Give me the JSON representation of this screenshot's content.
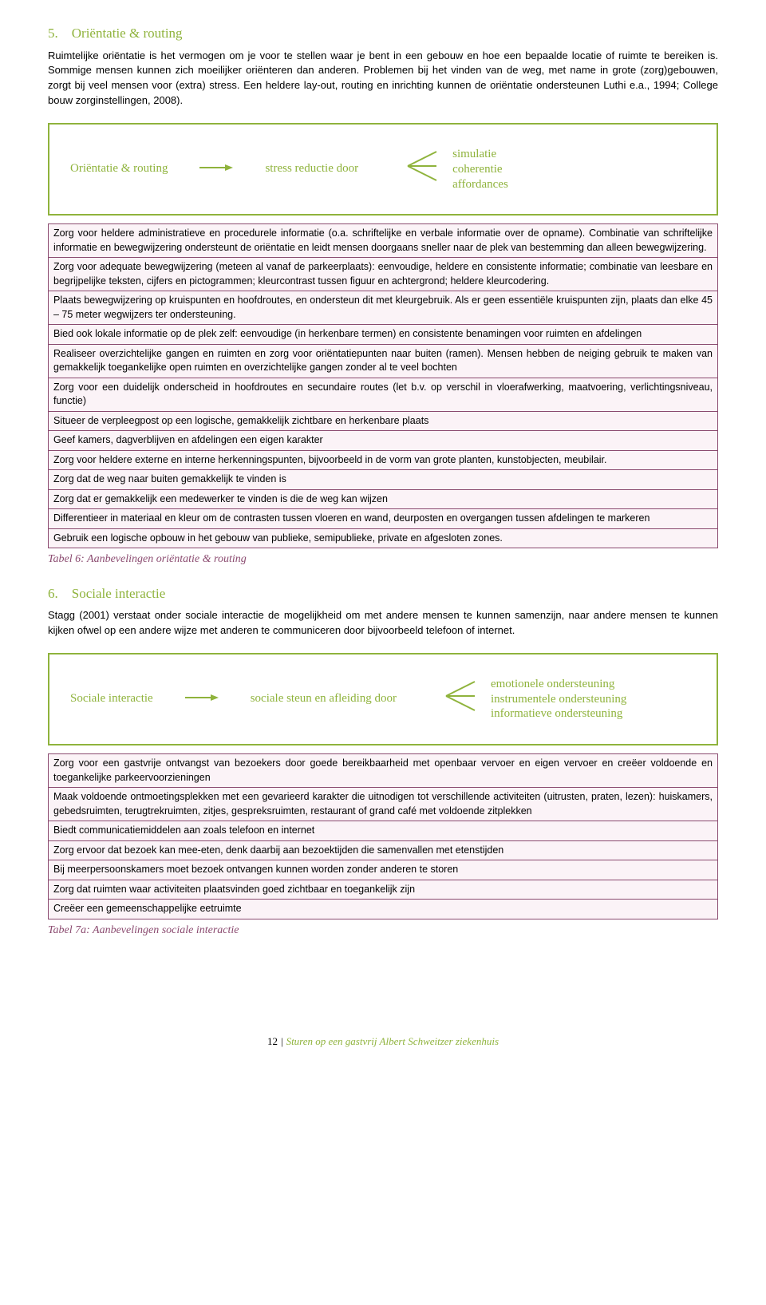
{
  "section5": {
    "heading": "5. Oriëntatie & routing",
    "body": "Ruimtelijke oriëntatie is het vermogen om je voor te stellen waar je bent in een gebouw en hoe een bepaalde locatie of ruimte te bereiken is. Sommige mensen kunnen zich moeilijker oriënteren dan anderen. Problemen bij het vinden van de weg, met name in grote (zorg)gebouwen, zorgt bij veel mensen voor (extra) stress. Een heldere lay-out, routing en inrichting kunnen de oriëntatie ondersteunen Luthi e.a., 1994; College bouw zorginstellingen, 2008)."
  },
  "diagram1": {
    "left": "Oriëntatie & routing",
    "mid": "stress reductie door",
    "right": [
      "simulatie",
      "coherentie",
      "affordances"
    ],
    "color": "#8fb33c"
  },
  "table6": {
    "border_color": "#8a4a6f",
    "row_bg": "#fbf3f7",
    "rows": [
      "Zorg voor heldere administratieve en procedurele informatie (o.a. schriftelijke en verbale informatie over de opname). Combinatie van schriftelijke informatie en bewegwijzering ondersteunt de oriëntatie en leidt mensen doorgaans sneller naar de plek van bestemming dan alleen bewegwijzering.",
      "Zorg voor adequate bewegwijzering (meteen al vanaf de parkeerplaats): eenvoudige, heldere en consistente informatie; combinatie van leesbare en begrijpelijke teksten, cijfers en pictogrammen; kleurcontrast tussen figuur en achtergrond; heldere kleurcodering.",
      "Plaats bewegwijzering op kruispunten en hoofdroutes, en ondersteun dit met kleurgebruik. Als er geen essentiële kruispunten zijn, plaats dan elke 45 – 75 meter wegwijzers ter ondersteuning.",
      "Bied ook lokale informatie op de plek zelf: eenvoudige (in herkenbare termen) en consistente benamingen voor ruimten en afdelingen",
      "Realiseer overzichtelijke gangen en ruimten en zorg voor oriëntatiepunten naar buiten (ramen). Mensen hebben de neiging gebruik te maken van gemakkelijk toegankelijke open ruimten en overzichtelijke gangen zonder al te veel bochten",
      "Zorg voor een duidelijk onderscheid in hoofdroutes en secundaire routes (let b.v. op verschil in vloerafwerking, maatvoering, verlichtingsniveau, functie)",
      "Situeer de verpleegpost op een logische, gemakkelijk zichtbare en herkenbare plaats",
      "Geef kamers, dagverblijven en afdelingen een eigen karakter",
      "Zorg voor heldere externe en interne herkenningspunten, bijvoorbeeld in de vorm van grote planten, kunstobjecten, meubilair.",
      "Zorg dat de weg naar buiten gemakkelijk te vinden is",
      "Zorg dat er gemakkelijk een medewerker te vinden is die de weg kan wijzen",
      "Differentieer in materiaal en kleur om de contrasten tussen vloeren en wand, deurposten en overgangen tussen afdelingen te markeren",
      "Gebruik een logische opbouw in het gebouw van publieke, semipublieke, private en afgesloten zones."
    ],
    "caption": "Tabel 6: Aanbevelingen oriëntatie & routing"
  },
  "section6": {
    "heading": "6. Sociale interactie",
    "body": "Stagg (2001) verstaat onder sociale interactie de mogelijkheid om met andere mensen te kunnen samenzijn, naar andere mensen te kunnen kijken ofwel op een andere wijze met anderen te communiceren door bijvoorbeeld telefoon of internet."
  },
  "diagram2": {
    "left": "Sociale interactie",
    "mid": "sociale steun en afleiding door",
    "right": [
      "emotionele ondersteuning",
      "instrumentele ondersteuning",
      "informatieve ondersteuning"
    ],
    "color": "#8fb33c"
  },
  "table7a": {
    "border_color": "#8a4a6f",
    "row_bg": "#fbf3f7",
    "rows": [
      "Zorg voor een gastvrije ontvangst van bezoekers door goede bereikbaarheid met openbaar vervoer en eigen vervoer en creëer voldoende en toegankelijke parkeervoorzieningen",
      "Maak voldoende ontmoetingsplekken met een gevarieerd karakter die uitnodigen tot verschillende activiteiten (uitrusten, praten, lezen): huiskamers, gebedsruimten, terugtrekruimten, zitjes, gespreksruimten, restaurant of grand café met voldoende zitplekken",
      "Biedt communicatiemiddelen aan zoals telefoon en internet",
      "Zorg ervoor dat bezoek kan mee-eten, denk daarbij aan bezoektijden die samenvallen met etenstijden",
      "Bij meerpersoonskamers moet bezoek ontvangen kunnen worden zonder anderen te storen",
      "Zorg dat ruimten waar activiteiten plaatsvinden goed zichtbaar en toegankelijk zijn",
      "Creëer een gemeenschappelijke eetruimte"
    ],
    "caption": "Tabel 7a: Aanbevelingen sociale interactie"
  },
  "footer": {
    "page": "12",
    "title": "Sturen op een gastvrij Albert Schweitzer ziekenhuis"
  }
}
